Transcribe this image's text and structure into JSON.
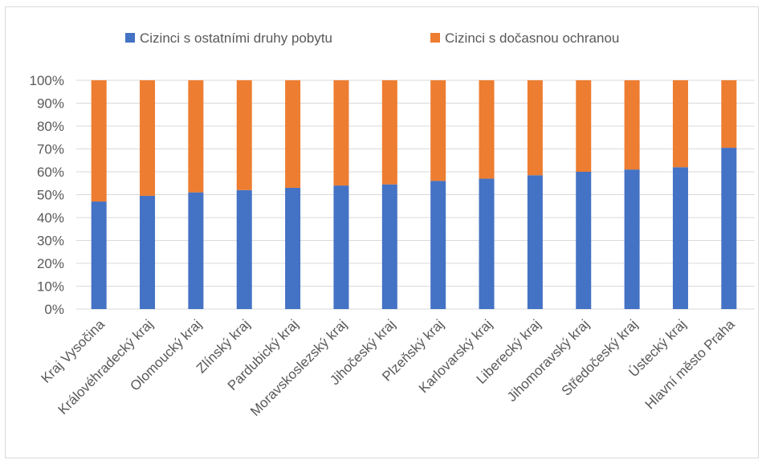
{
  "chart_data": {
    "type": "bar",
    "stacked": true,
    "percent_stacked": true,
    "categories": [
      "Kraj Vysočina",
      "Královéhradecký kraj",
      "Olomoucký kraj",
      "Zlínský kraj",
      "Pardubický kraj",
      "Moravskoslezský kraj",
      "Jihočeský kraj",
      "Plzeňský kraj",
      "Karlovarský kraj",
      "Liberecký kraj",
      "Jihomoravský kraj",
      "Středočeský kraj",
      "Ústecký kraj",
      "Hlavní město Praha"
    ],
    "series": [
      {
        "name": "Cizinci s ostatními druhy pobytu",
        "color": "#4472c4",
        "values": [
          47,
          49.5,
          51,
          52,
          53,
          54,
          54.5,
          56,
          57,
          58.5,
          60,
          61,
          62,
          70.5
        ]
      },
      {
        "name": "Cizinci s dočasnou ochranou",
        "color": "#ed7d31",
        "values": [
          53,
          50.5,
          49,
          48,
          47,
          46,
          45.5,
          44,
          43,
          41.5,
          40,
          39,
          38,
          29.5
        ]
      }
    ],
    "yticks": [
      "0%",
      "10%",
      "20%",
      "30%",
      "40%",
      "50%",
      "60%",
      "70%",
      "80%",
      "90%",
      "100%"
    ],
    "ylim": [
      0,
      100
    ],
    "grid": true,
    "legend_position": "top"
  }
}
